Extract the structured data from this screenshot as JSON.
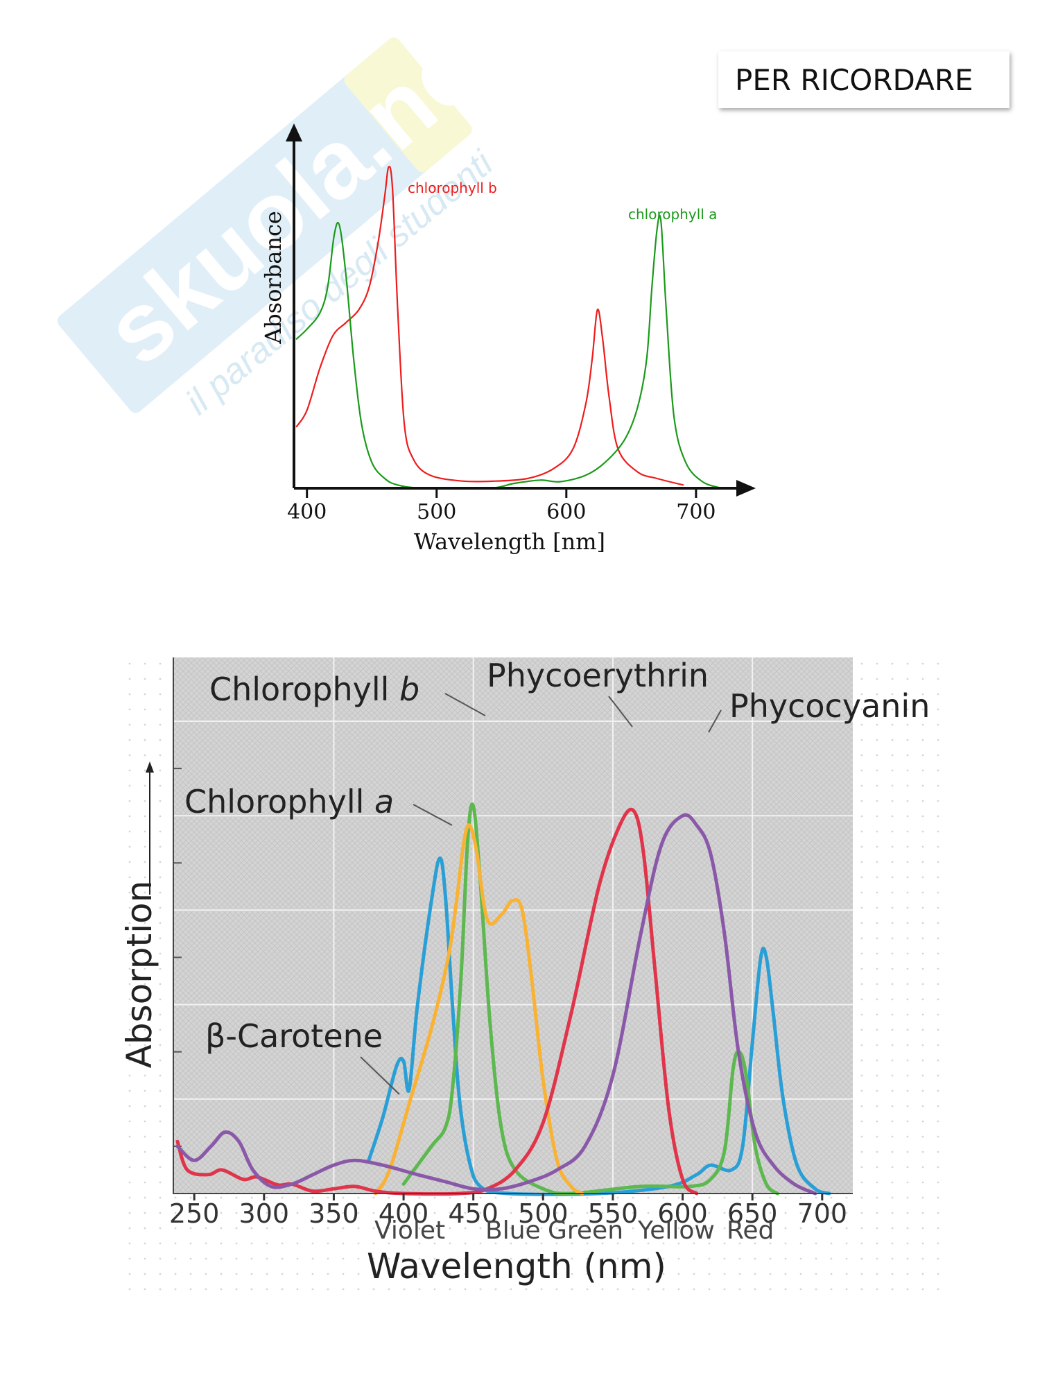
{
  "header": {
    "note": "PER RICORDARE"
  },
  "watermark": {
    "brand": "skuola.net",
    "tagline": "il paradiso degli studenti"
  },
  "chart_data": [
    {
      "type": "line",
      "title": "",
      "xlabel": "Wavelength [nm]",
      "ylabel": "Absorbance",
      "xlim": [
        390,
        730
      ],
      "ylim": [
        0,
        1
      ],
      "xticks": [
        400,
        500,
        600,
        700
      ],
      "grid": false,
      "series": [
        {
          "name": "chlorophyll b",
          "color": "#ee1c1c",
          "points": [
            [
              392,
              0.19
            ],
            [
              400,
              0.24
            ],
            [
              410,
              0.37
            ],
            [
              420,
              0.47
            ],
            [
              430,
              0.51
            ],
            [
              440,
              0.55
            ],
            [
              448,
              0.62
            ],
            [
              455,
              0.76
            ],
            [
              460,
              0.9
            ],
            [
              463,
              0.99
            ],
            [
              466,
              0.92
            ],
            [
              470,
              0.55
            ],
            [
              475,
              0.2
            ],
            [
              482,
              0.09
            ],
            [
              495,
              0.04
            ],
            [
              520,
              0.022
            ],
            [
              545,
              0.022
            ],
            [
              570,
              0.03
            ],
            [
              590,
              0.06
            ],
            [
              605,
              0.12
            ],
            [
              615,
              0.26
            ],
            [
              620,
              0.4
            ],
            [
              624,
              0.55
            ],
            [
              628,
              0.46
            ],
            [
              633,
              0.28
            ],
            [
              640,
              0.12
            ],
            [
              655,
              0.05
            ],
            [
              670,
              0.03
            ],
            [
              690,
              0.01
            ]
          ]
        },
        {
          "name": "chlorophyll a",
          "color": "#1a9a1a",
          "points": [
            [
              392,
              0.46
            ],
            [
              400,
              0.49
            ],
            [
              410,
              0.54
            ],
            [
              416,
              0.62
            ],
            [
              421,
              0.78
            ],
            [
              425,
              0.81
            ],
            [
              430,
              0.66
            ],
            [
              436,
              0.4
            ],
            [
              442,
              0.2
            ],
            [
              450,
              0.08
            ],
            [
              460,
              0.03
            ],
            [
              470,
              0.01
            ],
            [
              490,
              0.0
            ],
            [
              540,
              0.0
            ],
            [
              560,
              0.015
            ],
            [
              580,
              0.025
            ],
            [
              595,
              0.02
            ],
            [
              615,
              0.04
            ],
            [
              630,
              0.08
            ],
            [
              645,
              0.15
            ],
            [
              655,
              0.25
            ],
            [
              662,
              0.4
            ],
            [
              666,
              0.62
            ],
            [
              670,
              0.8
            ],
            [
              673,
              0.82
            ],
            [
              677,
              0.55
            ],
            [
              683,
              0.22
            ],
            [
              692,
              0.08
            ],
            [
              705,
              0.02
            ],
            [
              720,
              0.0
            ]
          ]
        }
      ],
      "annotations": [
        {
          "text": "chlorophyll b",
          "color": "#ee1c1c"
        },
        {
          "text": "chlorophyll a",
          "color": "#1a9a1a"
        }
      ]
    },
    {
      "type": "line",
      "title": "",
      "xlabel": "Wavelength (nm)",
      "ylabel": "Absorption",
      "xlim": [
        235,
        715
      ],
      "ylim": [
        0,
        1
      ],
      "xticks": [
        250,
        300,
        350,
        400,
        450,
        500,
        550,
        600,
        650,
        700
      ],
      "color_bands": [
        "Violet",
        "Blue",
        "Green",
        "Yellow",
        "Red"
      ],
      "grid": true,
      "series": [
        {
          "name": "Chlorophyll a",
          "color": "#2a9fd6",
          "points": [
            [
              375,
              0.07
            ],
            [
              385,
              0.16
            ],
            [
              395,
              0.27
            ],
            [
              400,
              0.28
            ],
            [
              404,
              0.22
            ],
            [
              410,
              0.4
            ],
            [
              420,
              0.62
            ],
            [
              426,
              0.71
            ],
            [
              430,
              0.63
            ],
            [
              435,
              0.4
            ],
            [
              440,
              0.2
            ],
            [
              447,
              0.07
            ],
            [
              455,
              0.015
            ],
            [
              475,
              0.0
            ],
            [
              540,
              0.0
            ],
            [
              590,
              0.015
            ],
            [
              610,
              0.04
            ],
            [
              620,
              0.06
            ],
            [
              635,
              0.05
            ],
            [
              643,
              0.1
            ],
            [
              650,
              0.32
            ],
            [
              656,
              0.5
            ],
            [
              660,
              0.5
            ],
            [
              665,
              0.38
            ],
            [
              672,
              0.2
            ],
            [
              682,
              0.06
            ],
            [
              695,
              0.01
            ],
            [
              705,
              0.0
            ]
          ]
        },
        {
          "name": "Chlorophyll b",
          "color": "#5cb84f",
          "points": [
            [
              400,
              0.02
            ],
            [
              420,
              0.1
            ],
            [
              430,
              0.14
            ],
            [
              435,
              0.22
            ],
            [
              441,
              0.45
            ],
            [
              446,
              0.75
            ],
            [
              450,
              0.82
            ],
            [
              455,
              0.66
            ],
            [
              462,
              0.36
            ],
            [
              470,
              0.14
            ],
            [
              480,
              0.05
            ],
            [
              500,
              0.01
            ],
            [
              520,
              0.0
            ],
            [
              570,
              0.015
            ],
            [
              605,
              0.015
            ],
            [
              620,
              0.03
            ],
            [
              630,
              0.09
            ],
            [
              636,
              0.26
            ],
            [
              640,
              0.3
            ],
            [
              645,
              0.26
            ],
            [
              652,
              0.1
            ],
            [
              660,
              0.02
            ],
            [
              668,
              0.0
            ]
          ]
        },
        {
          "name": "β-Carotene",
          "color": "#f9b233",
          "points": [
            [
              380,
              0.0
            ],
            [
              390,
              0.05
            ],
            [
              405,
              0.2
            ],
            [
              420,
              0.35
            ],
            [
              432,
              0.5
            ],
            [
              438,
              0.62
            ],
            [
              443,
              0.74
            ],
            [
              447,
              0.78
            ],
            [
              452,
              0.73
            ],
            [
              460,
              0.58
            ],
            [
              470,
              0.59
            ],
            [
              478,
              0.62
            ],
            [
              485,
              0.6
            ],
            [
              492,
              0.45
            ],
            [
              500,
              0.24
            ],
            [
              510,
              0.07
            ],
            [
              520,
              0.015
            ],
            [
              528,
              0.0
            ]
          ]
        },
        {
          "name": "Phycoerythrin",
          "color": "#e0344a",
          "points": [
            [
              238,
              0.11
            ],
            [
              245,
              0.05
            ],
            [
              260,
              0.04
            ],
            [
              270,
              0.05
            ],
            [
              285,
              0.03
            ],
            [
              295,
              0.035
            ],
            [
              310,
              0.018
            ],
            [
              320,
              0.02
            ],
            [
              335,
              0.005
            ],
            [
              350,
              0.01
            ],
            [
              365,
              0.015
            ],
            [
              380,
              0.005
            ],
            [
              400,
              0.0
            ],
            [
              440,
              0.0
            ],
            [
              460,
              0.01
            ],
            [
              480,
              0.05
            ],
            [
              500,
              0.15
            ],
            [
              520,
              0.38
            ],
            [
              540,
              0.65
            ],
            [
              555,
              0.78
            ],
            [
              565,
              0.81
            ],
            [
              572,
              0.72
            ],
            [
              580,
              0.48
            ],
            [
              590,
              0.18
            ],
            [
              600,
              0.03
            ],
            [
              610,
              0.0
            ]
          ]
        },
        {
          "name": "Phycocyanin",
          "color": "#8a58a8",
          "points": [
            [
              238,
              0.1
            ],
            [
              250,
              0.07
            ],
            [
              262,
              0.1
            ],
            [
              272,
              0.13
            ],
            [
              282,
              0.11
            ],
            [
              292,
              0.05
            ],
            [
              305,
              0.015
            ],
            [
              320,
              0.02
            ],
            [
              335,
              0.04
            ],
            [
              350,
              0.06
            ],
            [
              365,
              0.07
            ],
            [
              385,
              0.06
            ],
            [
              410,
              0.04
            ],
            [
              430,
              0.025
            ],
            [
              450,
              0.01
            ],
            [
              470,
              0.01
            ],
            [
              490,
              0.025
            ],
            [
              510,
              0.05
            ],
            [
              530,
              0.1
            ],
            [
              550,
              0.25
            ],
            [
              570,
              0.55
            ],
            [
              585,
              0.74
            ],
            [
              600,
              0.8
            ],
            [
              610,
              0.78
            ],
            [
              620,
              0.72
            ],
            [
              630,
              0.55
            ],
            [
              640,
              0.3
            ],
            [
              652,
              0.13
            ],
            [
              665,
              0.06
            ],
            [
              680,
              0.02
            ],
            [
              695,
              0.0
            ]
          ]
        }
      ],
      "labels": [
        "Chlorophyll b",
        "Phycoerythrin",
        "Phycocyanin",
        "Chlorophyll a",
        "β-Carotene"
      ],
      "label_italic": [
        "b",
        "a"
      ]
    }
  ]
}
